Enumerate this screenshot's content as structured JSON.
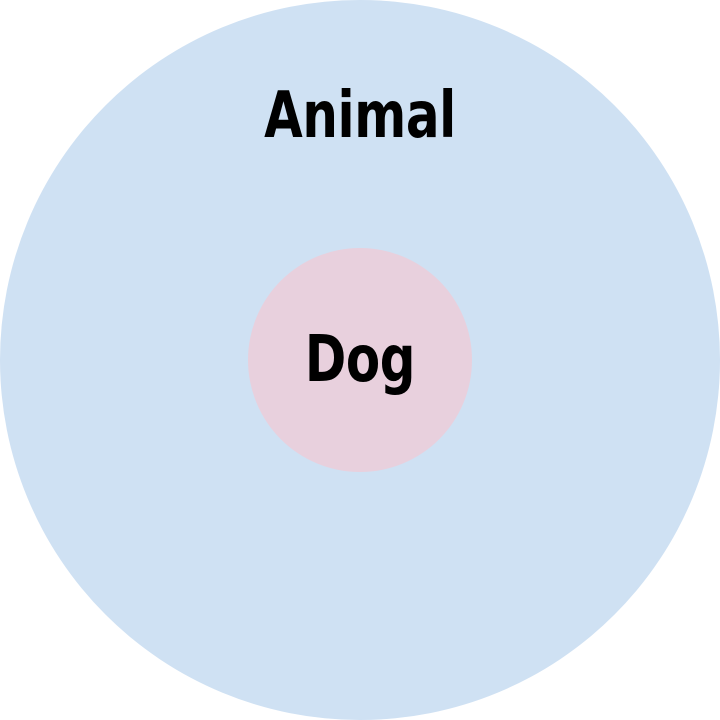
{
  "diagram": {
    "outer": {
      "label": "Animal",
      "color": "#cfe1f3"
    },
    "inner": {
      "label": "Dog",
      "color": "#e8d0dd"
    }
  }
}
